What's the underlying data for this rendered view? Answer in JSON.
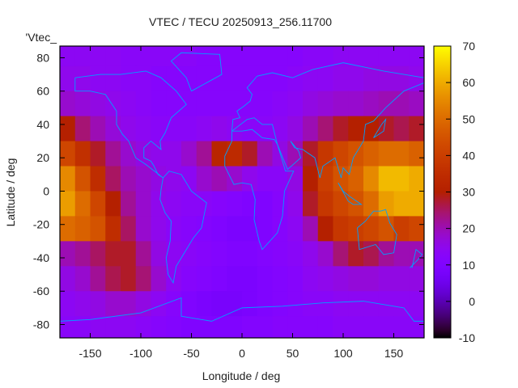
{
  "chart_data": {
    "type": "heatmap",
    "title": "VTEC / TECU 20250913_256.11700",
    "xlabel": "Longitude / deg",
    "ylabel": "Latitude / deg",
    "legend": [
      "'Vtec_"
    ],
    "xlim": [
      -180,
      180
    ],
    "ylim": [
      -88,
      87
    ],
    "xticks": [
      -150,
      -100,
      -50,
      0,
      50,
      100,
      150
    ],
    "yticks": [
      -80,
      -60,
      -40,
      -20,
      0,
      20,
      40,
      60,
      80
    ],
    "colorbar": {
      "range": [
        -10,
        70
      ],
      "ticks": [
        -10,
        0,
        10,
        20,
        30,
        40,
        50,
        60,
        70
      ],
      "palette": "gnuplot rgbformulae 7,5,15"
    },
    "coastline_color": "#00a0ff",
    "grid_lon_centers": [
      -172.5,
      -157.5,
      -142.5,
      -127.5,
      -112.5,
      -97.5,
      -82.5,
      -67.5,
      -52.5,
      -37.5,
      -22.5,
      -7.5,
      7.5,
      22.5,
      37.5,
      52.5,
      67.5,
      82.5,
      97.5,
      112.5,
      127.5,
      142.5,
      157.5,
      172.5
    ],
    "grid_lat_centers": [
      82.5,
      67.5,
      52.5,
      37.5,
      22.5,
      7.5,
      -7.5,
      -22.5,
      -37.5,
      -52.5,
      -67.5,
      -82.5
    ],
    "cell_size_deg": 15,
    "values": [
      [
        14,
        14,
        14,
        14,
        13,
        13,
        13,
        13,
        13,
        12,
        12,
        12,
        12,
        12,
        12,
        12,
        13,
        13,
        14,
        14,
        14,
        14,
        14,
        14
      ],
      [
        15,
        15,
        14,
        14,
        13,
        13,
        12,
        12,
        12,
        12,
        12,
        12,
        12,
        12,
        12,
        13,
        14,
        14,
        15,
        15,
        16,
        16,
        16,
        15
      ],
      [
        18,
        17,
        16,
        15,
        14,
        13,
        12,
        12,
        12,
        12,
        12,
        12,
        12,
        12,
        13,
        14,
        16,
        17,
        18,
        18,
        19,
        20,
        20,
        19
      ],
      [
        30,
        24,
        20,
        17,
        15,
        14,
        13,
        13,
        13,
        14,
        15,
        14,
        13,
        13,
        14,
        16,
        20,
        24,
        28,
        30,
        30,
        28,
        26,
        28
      ],
      [
        42,
        36,
        28,
        22,
        18,
        16,
        15,
        15,
        18,
        22,
        32,
        34,
        28,
        20,
        16,
        20,
        28,
        38,
        42,
        45,
        48,
        50,
        50,
        48
      ],
      [
        55,
        45,
        35,
        25,
        20,
        18,
        16,
        15,
        14,
        18,
        20,
        18,
        15,
        13,
        13,
        16,
        30,
        40,
        45,
        48,
        55,
        62,
        62,
        60
      ],
      [
        58,
        50,
        42,
        30,
        22,
        18,
        15,
        14,
        13,
        13,
        12,
        11,
        10,
        10,
        12,
        15,
        28,
        38,
        42,
        45,
        50,
        58,
        60,
        60
      ],
      [
        50,
        48,
        45,
        35,
        25,
        18,
        15,
        13,
        12,
        11,
        10,
        9,
        9,
        10,
        12,
        14,
        20,
        30,
        38,
        40,
        42,
        45,
        40,
        42
      ],
      [
        20,
        22,
        25,
        28,
        28,
        22,
        16,
        14,
        13,
        12,
        11,
        10,
        10,
        11,
        12,
        13,
        15,
        18,
        24,
        28,
        26,
        22,
        20,
        20
      ],
      [
        16,
        18,
        22,
        26,
        28,
        24,
        18,
        14,
        12,
        11,
        10,
        9,
        9,
        10,
        11,
        12,
        14,
        15,
        16,
        17,
        17,
        16,
        16,
        16
      ],
      [
        14,
        15,
        16,
        18,
        18,
        16,
        14,
        12,
        10,
        9,
        8,
        8,
        9,
        10,
        11,
        12,
        13,
        13,
        14,
        14,
        14,
        14,
        14,
        14
      ],
      [
        13,
        13,
        14,
        14,
        14,
        13,
        12,
        11,
        10,
        10,
        10,
        10,
        11,
        11,
        12,
        12,
        12,
        12,
        13,
        13,
        13,
        13,
        13,
        13
      ]
    ]
  }
}
